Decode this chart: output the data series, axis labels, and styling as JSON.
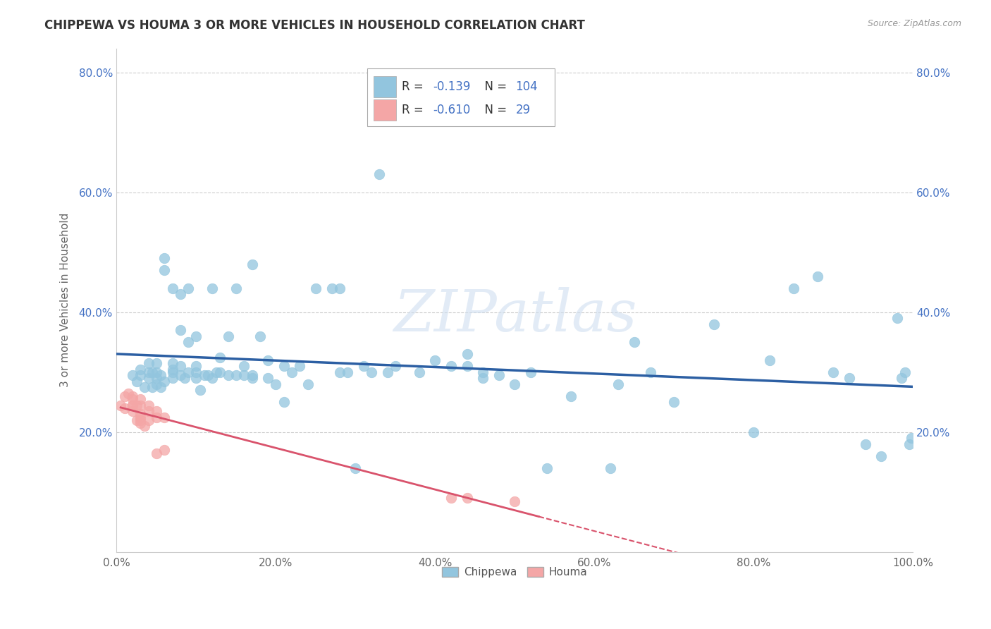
{
  "title": "CHIPPEWA VS HOUMA 3 OR MORE VEHICLES IN HOUSEHOLD CORRELATION CHART",
  "source": "Source: ZipAtlas.com",
  "ylabel": "3 or more Vehicles in Household",
  "xlim": [
    0.0,
    1.0
  ],
  "ylim": [
    0.0,
    0.84
  ],
  "xticks": [
    0.0,
    0.2,
    0.4,
    0.6,
    0.8,
    1.0
  ],
  "xtick_labels": [
    "0.0%",
    "20.0%",
    "40.0%",
    "60.0%",
    "80.0%",
    "100.0%"
  ],
  "yticks": [
    0.2,
    0.4,
    0.6,
    0.8
  ],
  "ytick_labels": [
    "20.0%",
    "40.0%",
    "60.0%",
    "80.0%"
  ],
  "chippewa_color": "#92c5de",
  "houma_color": "#f4a6a6",
  "chippewa_line_color": "#2c5fa3",
  "houma_line_color": "#d9536c",
  "chippewa_R": "-0.139",
  "chippewa_N": "104",
  "houma_R": "-0.610",
  "houma_N": "29",
  "legend_label_blue": "Chippewa",
  "legend_label_pink": "Houma",
  "watermark": "ZIPatlas",
  "title_fontsize": 12,
  "chippewa_x": [
    0.02,
    0.025,
    0.03,
    0.03,
    0.035,
    0.04,
    0.04,
    0.04,
    0.045,
    0.045,
    0.05,
    0.05,
    0.05,
    0.05,
    0.055,
    0.055,
    0.06,
    0.06,
    0.06,
    0.07,
    0.07,
    0.07,
    0.07,
    0.07,
    0.08,
    0.08,
    0.08,
    0.08,
    0.085,
    0.09,
    0.09,
    0.09,
    0.1,
    0.1,
    0.1,
    0.1,
    0.105,
    0.11,
    0.115,
    0.12,
    0.12,
    0.125,
    0.13,
    0.13,
    0.14,
    0.14,
    0.15,
    0.15,
    0.16,
    0.16,
    0.17,
    0.17,
    0.17,
    0.18,
    0.19,
    0.19,
    0.2,
    0.21,
    0.21,
    0.22,
    0.23,
    0.24,
    0.25,
    0.27,
    0.28,
    0.28,
    0.29,
    0.3,
    0.31,
    0.32,
    0.33,
    0.34,
    0.35,
    0.38,
    0.4,
    0.42,
    0.44,
    0.44,
    0.46,
    0.46,
    0.48,
    0.5,
    0.52,
    0.54,
    0.57,
    0.62,
    0.63,
    0.65,
    0.67,
    0.7,
    0.75,
    0.8,
    0.82,
    0.85,
    0.88,
    0.9,
    0.92,
    0.94,
    0.96,
    0.98,
    0.985,
    0.99,
    0.995,
    0.998
  ],
  "chippewa_y": [
    0.295,
    0.285,
    0.295,
    0.305,
    0.275,
    0.29,
    0.3,
    0.315,
    0.275,
    0.3,
    0.28,
    0.29,
    0.3,
    0.315,
    0.275,
    0.295,
    0.285,
    0.47,
    0.49,
    0.29,
    0.3,
    0.305,
    0.315,
    0.44,
    0.295,
    0.31,
    0.37,
    0.43,
    0.29,
    0.3,
    0.35,
    0.44,
    0.29,
    0.3,
    0.31,
    0.36,
    0.27,
    0.295,
    0.295,
    0.29,
    0.44,
    0.3,
    0.3,
    0.325,
    0.295,
    0.36,
    0.295,
    0.44,
    0.295,
    0.31,
    0.29,
    0.295,
    0.48,
    0.36,
    0.29,
    0.32,
    0.28,
    0.25,
    0.31,
    0.3,
    0.31,
    0.28,
    0.44,
    0.44,
    0.3,
    0.44,
    0.3,
    0.14,
    0.31,
    0.3,
    0.63,
    0.3,
    0.31,
    0.3,
    0.32,
    0.31,
    0.31,
    0.33,
    0.29,
    0.3,
    0.295,
    0.28,
    0.3,
    0.14,
    0.26,
    0.14,
    0.28,
    0.35,
    0.3,
    0.25,
    0.38,
    0.2,
    0.32,
    0.44,
    0.46,
    0.3,
    0.29,
    0.18,
    0.16,
    0.39,
    0.29,
    0.3,
    0.18,
    0.19
  ],
  "houma_x": [
    0.005,
    0.01,
    0.01,
    0.015,
    0.02,
    0.02,
    0.02,
    0.02,
    0.02,
    0.025,
    0.025,
    0.03,
    0.03,
    0.03,
    0.03,
    0.03,
    0.03,
    0.035,
    0.04,
    0.04,
    0.04,
    0.05,
    0.05,
    0.05,
    0.06,
    0.06,
    0.42,
    0.44,
    0.5
  ],
  "houma_y": [
    0.245,
    0.26,
    0.24,
    0.265,
    0.26,
    0.245,
    0.235,
    0.255,
    0.245,
    0.22,
    0.245,
    0.225,
    0.23,
    0.245,
    0.255,
    0.22,
    0.215,
    0.21,
    0.22,
    0.235,
    0.245,
    0.165,
    0.225,
    0.235,
    0.17,
    0.225,
    0.09,
    0.09,
    0.085
  ],
  "houma_line_x_end": 0.53
}
